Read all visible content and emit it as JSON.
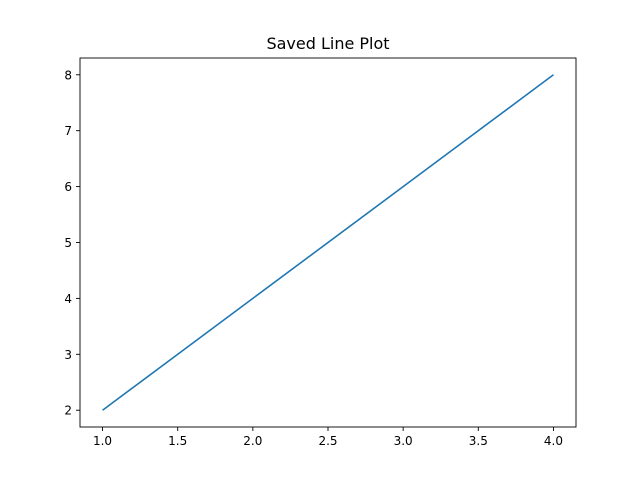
{
  "chart_data": {
    "type": "line",
    "title": "Saved Line Plot",
    "xlabel": "",
    "ylabel": "",
    "x": [
      1,
      2,
      3,
      4
    ],
    "series": [
      {
        "values": [
          2,
          4,
          6,
          8
        ],
        "color": "#1f77b4"
      }
    ],
    "xlim": [
      0.85,
      4.15
    ],
    "ylim": [
      1.7,
      8.3
    ],
    "xticks": [
      1.0,
      1.5,
      2.0,
      2.5,
      3.0,
      3.5,
      4.0
    ],
    "xtick_labels": [
      "1.0",
      "1.5",
      "2.0",
      "2.5",
      "3.0",
      "3.5",
      "4.0"
    ],
    "yticks": [
      2,
      3,
      4,
      5,
      6,
      7,
      8
    ],
    "ytick_labels": [
      "2",
      "3",
      "4",
      "5",
      "6",
      "7",
      "8"
    ],
    "grid": false,
    "legend": "none"
  }
}
